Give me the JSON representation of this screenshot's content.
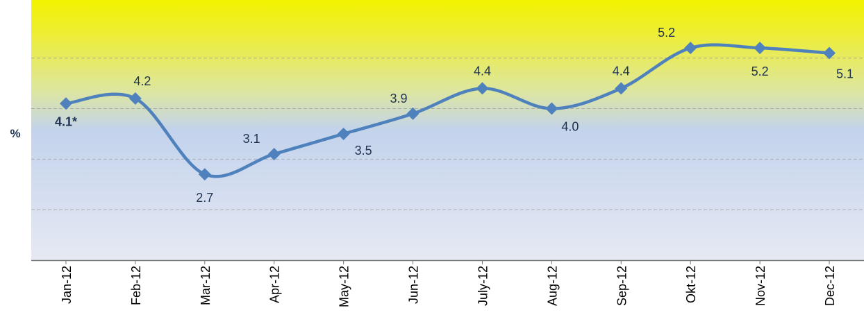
{
  "chart_data": {
    "type": "line",
    "y_label": "%",
    "categories": [
      "Jan-12",
      "Feb-12",
      "Mar-12",
      "Apr-12",
      "May-12",
      "Jun-12",
      "July-12",
      "Aug-12",
      "Sep-12",
      "Okt-12",
      "Nov-12",
      "Dec-12"
    ],
    "series": [
      {
        "name": null,
        "color": "#4f81bd",
        "values": [
          4.1,
          4.2,
          2.7,
          3.1,
          3.5,
          3.9,
          4.4,
          4.0,
          4.4,
          5.2,
          5.2,
          5.1
        ],
        "value_labels": [
          "4.1*",
          "4.2",
          "2.7",
          "3.1",
          "3.5",
          "3.9",
          "4.4",
          "4.0",
          "4.4",
          "5.2",
          "5.2",
          "5.1"
        ]
      }
    ],
    "ylim": [
      1,
      6.15
    ],
    "yticks": [
      2,
      3,
      4,
      5
    ],
    "grid": true,
    "smooth": true
  }
}
